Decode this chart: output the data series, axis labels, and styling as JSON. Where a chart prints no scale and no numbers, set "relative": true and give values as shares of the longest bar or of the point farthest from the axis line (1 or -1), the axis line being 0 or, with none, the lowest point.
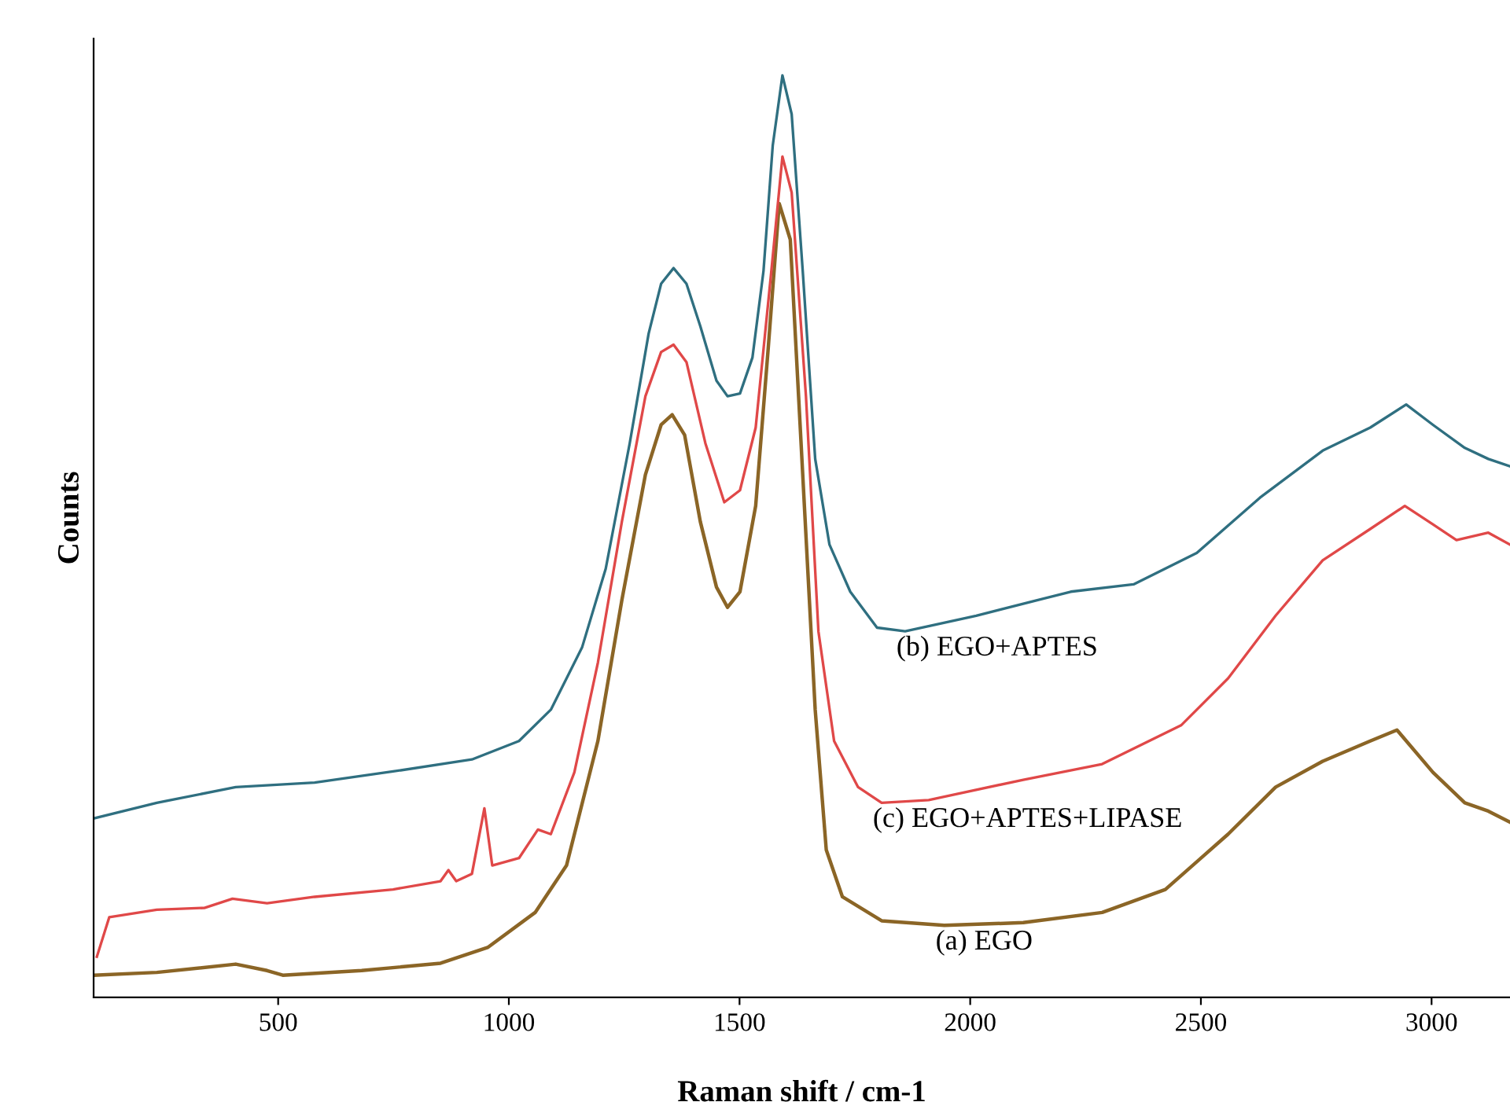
{
  "chart_data": {
    "type": "line",
    "xlabel": "Raman shift / cm-1",
    "ylabel": "Counts",
    "relative": true,
    "xlim": [
      100,
      3170
    ],
    "xticks": [
      500,
      1000,
      1500,
      2000,
      2500,
      3000
    ],
    "grid": false,
    "legend": false,
    "marker": "none",
    "line_style": "solid",
    "series": [
      {
        "name": "(a) EGO",
        "color": "#8b6526",
        "x": [
          100,
          237,
          408,
          476,
          510,
          681,
          852,
          954,
          1057,
          1125,
          1193,
          1245,
          1296,
          1330,
          1354,
          1381,
          1415,
          1450,
          1474,
          1501,
          1535,
          1562,
          1586,
          1610,
          1637,
          1664,
          1688,
          1723,
          1808,
          1944,
          2115,
          2286,
          2423,
          2559,
          2662,
          2764,
          2867,
          2925,
          3003,
          3072,
          3123,
          3170
        ],
        "values": [
          0.024,
          0.027,
          0.036,
          0.029,
          0.024,
          0.029,
          0.037,
          0.054,
          0.092,
          0.143,
          0.278,
          0.431,
          0.567,
          0.621,
          0.632,
          0.61,
          0.516,
          0.445,
          0.423,
          0.44,
          0.533,
          0.703,
          0.861,
          0.822,
          0.567,
          0.312,
          0.16,
          0.109,
          0.083,
          0.078,
          0.081,
          0.092,
          0.117,
          0.177,
          0.228,
          0.256,
          0.278,
          0.29,
          0.244,
          0.211,
          0.202,
          0.19
        ]
      },
      {
        "name": "(b) EGO+APTES",
        "color": "#2f6f80",
        "x": [
          100,
          237,
          408,
          579,
          749,
          920,
          1022,
          1091,
          1159,
          1210,
          1262,
          1303,
          1330,
          1357,
          1385,
          1415,
          1450,
          1474,
          1501,
          1528,
          1552,
          1572,
          1593,
          1613,
          1637,
          1664,
          1695,
          1740,
          1798,
          1859,
          2013,
          2218,
          2354,
          2491,
          2628,
          2764,
          2867,
          2945,
          3003,
          3072,
          3123,
          3170
        ],
        "values": [
          0.194,
          0.211,
          0.228,
          0.233,
          0.245,
          0.258,
          0.278,
          0.312,
          0.38,
          0.465,
          0.601,
          0.72,
          0.774,
          0.791,
          0.774,
          0.728,
          0.669,
          0.652,
          0.655,
          0.694,
          0.788,
          0.924,
          1.0,
          0.958,
          0.788,
          0.584,
          0.491,
          0.44,
          0.401,
          0.397,
          0.414,
          0.44,
          0.448,
          0.482,
          0.542,
          0.593,
          0.618,
          0.643,
          0.621,
          0.596,
          0.584,
          0.576
        ]
      },
      {
        "name": "(c) EGO+APTES+LIPASE",
        "color": "#e04848",
        "x": [
          107,
          134,
          237,
          340,
          401,
          476,
          579,
          749,
          852,
          869,
          886,
          920,
          947,
          964,
          1022,
          1063,
          1091,
          1142,
          1193,
          1245,
          1296,
          1330,
          1357,
          1385,
          1426,
          1467,
          1501,
          1535,
          1569,
          1593,
          1613,
          1644,
          1671,
          1705,
          1757,
          1808,
          1910,
          2115,
          2286,
          2457,
          2559,
          2662,
          2764,
          2867,
          2942,
          3003,
          3054,
          3123,
          3170
        ],
        "values": [
          0.044,
          0.087,
          0.095,
          0.097,
          0.107,
          0.102,
          0.109,
          0.117,
          0.126,
          0.138,
          0.126,
          0.134,
          0.205,
          0.143,
          0.151,
          0.182,
          0.177,
          0.244,
          0.363,
          0.516,
          0.652,
          0.7,
          0.708,
          0.689,
          0.601,
          0.537,
          0.55,
          0.618,
          0.788,
          0.912,
          0.873,
          0.652,
          0.397,
          0.278,
          0.228,
          0.211,
          0.214,
          0.236,
          0.253,
          0.295,
          0.346,
          0.414,
          0.474,
          0.508,
          0.533,
          0.513,
          0.496,
          0.504,
          0.491
        ]
      }
    ]
  }
}
